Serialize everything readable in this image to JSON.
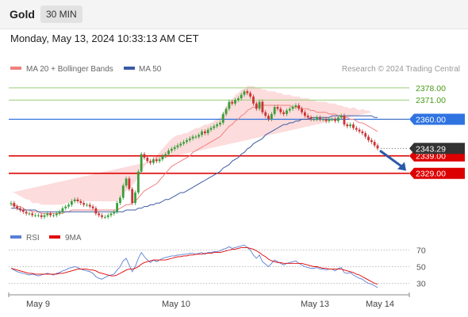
{
  "header": {
    "title": "Gold",
    "interval": "30 MIN",
    "datetime": "Monday, May 13, 2024 10:33:13 AM CET"
  },
  "colors": {
    "candle_up": "#3a9e3a",
    "candle_down": "#cc3333",
    "ma20": "#f08080",
    "bollinger": "#fbd3d3",
    "ma50": "#3b5ba5",
    "support": "#dd0000",
    "pivot": "#2f73e0",
    "resistance": "#9acd78",
    "rsi": "#5b7fd6",
    "rsi_ma": "#e00000",
    "arrow": "#2b59a8"
  },
  "chart_data": [
    {
      "type": "candlestick",
      "legend": [
        "MA 20 + Bollinger Bands",
        "MA 50"
      ],
      "watermark": "Research © 2024 Trading Central",
      "x_ticks": [
        "May 9",
        "May 10",
        "May 13",
        "May 14"
      ],
      "ylim": [
        2298,
        2392
      ],
      "current_price": "2343.29",
      "levels": [
        {
          "label": "2378.00",
          "value": 2378.0,
          "kind": "resistance"
        },
        {
          "label": "2371.00",
          "value": 2371.0,
          "kind": "resistance"
        },
        {
          "label": "2360.00",
          "value": 2360.0,
          "kind": "pivot"
        },
        {
          "label": "2339.00",
          "value": 2339.0,
          "kind": "support"
        },
        {
          "label": "2329.00",
          "value": 2329.0,
          "kind": "support"
        }
      ],
      "closes": [
        2312,
        2310,
        2309,
        2308,
        2307,
        2306,
        2306,
        2305,
        2305,
        2305,
        2304,
        2305,
        2306,
        2305,
        2305,
        2306,
        2307,
        2309,
        2310,
        2311,
        2313,
        2314,
        2313,
        2312,
        2311,
        2311,
        2310,
        2309,
        2306,
        2305,
        2304,
        2304,
        2305,
        2306,
        2307,
        2312,
        2315,
        2322,
        2326,
        2320,
        2312,
        2318,
        2330,
        2340,
        2338,
        2336,
        2335,
        2337,
        2336,
        2337,
        2339,
        2340,
        2342,
        2343,
        2344,
        2345,
        2346,
        2347,
        2348,
        2349,
        2350,
        2350,
        2351,
        2353,
        2352,
        2354,
        2355,
        2356,
        2357,
        2358,
        2363,
        2366,
        2370,
        2369,
        2371,
        2372,
        2374,
        2376,
        2375,
        2373,
        2369,
        2366,
        2370,
        2364,
        2362,
        2360,
        2363,
        2367,
        2366,
        2364,
        2363,
        2365,
        2366,
        2367,
        2368,
        2366,
        2364,
        2362,
        2361,
        2360,
        2360,
        2361,
        2360,
        2360,
        2359,
        2360,
        2360,
        2359,
        2361,
        2362,
        2357,
        2356,
        2357,
        2355,
        2354,
        2353,
        2352,
        2350,
        2348,
        2347,
        2345,
        2343.29
      ],
      "ma20": [
        2311,
        2311,
        2310,
        2310,
        2309,
        2308,
        2308,
        2307,
        2307,
        2307,
        2306,
        2306,
        2306,
        2306,
        2306,
        2306,
        2306,
        2306,
        2307,
        2307,
        2308,
        2308,
        2308,
        2308,
        2308,
        2308,
        2308,
        2308,
        2308,
        2308,
        2308,
        2308,
        2308,
        2308,
        2308,
        2308,
        2309,
        2310,
        2311,
        2311,
        2312,
        2313,
        2315,
        2317,
        2319,
        2320,
        2321,
        2322,
        2323,
        2325,
        2327,
        2329,
        2331,
        2333,
        2334,
        2335,
        2336,
        2337,
        2338,
        2339,
        2341,
        2342,
        2343,
        2344,
        2345,
        2346,
        2347,
        2348,
        2349,
        2350,
        2352,
        2354,
        2356,
        2357,
        2359,
        2360,
        2362,
        2363,
        2365,
        2366,
        2367,
        2367,
        2368,
        2368,
        2368,
        2368,
        2368,
        2368,
        2368,
        2368,
        2368,
        2368,
        2368,
        2367,
        2367,
        2367,
        2366,
        2366,
        2366,
        2365,
        2365,
        2364,
        2364,
        2364,
        2364,
        2363,
        2363,
        2363,
        2362,
        2362,
        2361,
        2361,
        2360,
        2360,
        2359,
        2358,
        2358,
        2357,
        2356,
        2355,
        2354,
        2353
      ],
      "ma50": [
        2309,
        2309,
        2309,
        2308,
        2308,
        2308,
        2308,
        2308,
        2308,
        2307,
        2307,
        2307,
        2307,
        2307,
        2307,
        2307,
        2307,
        2307,
        2307,
        2307,
        2307,
        2307,
        2307,
        2307,
        2307,
        2307,
        2307,
        2307,
        2307,
        2307,
        2307,
        2307,
        2307,
        2307,
        2307,
        2307,
        2307,
        2307,
        2308,
        2308,
        2308,
        2308,
        2309,
        2309,
        2310,
        2310,
        2311,
        2311,
        2312,
        2312,
        2313,
        2314,
        2314,
        2315,
        2316,
        2317,
        2318,
        2318,
        2319,
        2320,
        2321,
        2322,
        2323,
        2324,
        2325,
        2326,
        2327,
        2328,
        2329,
        2330,
        2332,
        2333,
        2334,
        2336,
        2337,
        2338,
        2340,
        2341,
        2343,
        2344,
        2346,
        2347,
        2348,
        2349,
        2351,
        2352,
        2353,
        2354,
        2355,
        2356,
        2357,
        2357,
        2358,
        2358,
        2359,
        2359,
        2360,
        2360,
        2360,
        2361,
        2361,
        2361,
        2361,
        2361,
        2361,
        2361,
        2362,
        2362,
        2362,
        2362,
        2362,
        2362,
        2362,
        2362,
        2362,
        2362,
        2362,
        2362,
        2362,
        2362,
        2361,
        2361
      ],
      "bb_width": [
        7,
        7,
        7,
        6,
        6,
        6,
        6,
        5,
        5,
        5,
        5,
        5,
        5,
        5,
        5,
        5,
        5,
        5,
        5,
        5,
        5,
        5,
        5,
        5,
        5,
        5,
        5,
        5,
        5,
        5,
        5,
        5,
        5,
        5,
        5,
        5,
        6,
        7,
        8,
        9,
        10,
        11,
        12,
        13,
        14,
        15,
        15,
        16,
        16,
        16,
        16,
        16,
        16,
        16,
        16,
        16,
        15,
        15,
        14,
        14,
        13,
        13,
        12,
        12,
        12,
        11,
        11,
        11,
        11,
        11,
        12,
        13,
        14,
        14,
        15,
        15,
        15,
        14,
        14,
        13,
        12,
        11,
        10,
        9,
        9,
        8,
        8,
        8,
        7,
        7,
        6,
        6,
        6,
        6,
        6,
        6,
        6,
        6,
        6,
        6,
        6,
        6,
        6,
        6,
        6,
        6,
        6,
        6,
        6,
        6,
        6,
        6,
        6,
        7,
        7,
        7,
        8,
        8,
        9,
        9
      ]
    },
    {
      "type": "line",
      "legend": [
        "RSI",
        "9MA"
      ],
      "ylim": [
        20,
        80
      ],
      "y_ticks": [
        70,
        50,
        30
      ],
      "series": [
        {
          "name": "RSI",
          "values": [
            48,
            46,
            44,
            43,
            42,
            41,
            40,
            41,
            40,
            39,
            40,
            41,
            42,
            41,
            40,
            42,
            43,
            45,
            46,
            48,
            49,
            50,
            49,
            47,
            46,
            45,
            44,
            42,
            38,
            36,
            35,
            37,
            39,
            40,
            41,
            46,
            50,
            57,
            60,
            52,
            44,
            50,
            60,
            67,
            62,
            58,
            55,
            58,
            56,
            58,
            60,
            61,
            62,
            63,
            63,
            64,
            64,
            65,
            65,
            66,
            66,
            65,
            66,
            67,
            65,
            67,
            67,
            68,
            68,
            69,
            71,
            72,
            74,
            72,
            73,
            74,
            75,
            76,
            73,
            70,
            64,
            60,
            64,
            56,
            53,
            50,
            54,
            58,
            56,
            54,
            52,
            54,
            55,
            56,
            57,
            54,
            52,
            50,
            49,
            48,
            48,
            49,
            47,
            47,
            46,
            47,
            47,
            45,
            48,
            49,
            43,
            42,
            43,
            40,
            38,
            36,
            35,
            32,
            30,
            29,
            27,
            25
          ]
        },
        {
          "name": "9MA",
          "values": [
            48,
            47,
            46,
            45,
            44,
            43,
            42,
            42,
            41,
            41,
            41,
            41,
            41,
            41,
            41,
            41,
            42,
            42,
            43,
            44,
            45,
            46,
            47,
            47,
            47,
            47,
            46,
            46,
            45,
            43,
            42,
            41,
            40,
            39,
            39,
            40,
            42,
            44,
            46,
            47,
            47,
            48,
            50,
            53,
            55,
            56,
            57,
            58,
            58,
            58,
            58,
            58,
            59,
            60,
            61,
            62,
            62,
            63,
            63,
            64,
            64,
            65,
            65,
            65,
            66,
            66,
            66,
            67,
            67,
            67,
            68,
            69,
            70,
            71,
            71,
            72,
            73,
            73,
            73,
            72,
            71,
            69,
            67,
            64,
            62,
            59,
            57,
            56,
            55,
            55,
            54,
            54,
            54,
            54,
            54,
            54,
            54,
            53,
            52,
            51,
            50,
            50,
            49,
            48,
            48,
            47,
            47,
            47,
            47,
            47,
            46,
            45,
            44,
            43,
            41,
            40,
            38,
            36,
            34,
            32,
            30,
            29
          ]
        }
      ]
    }
  ]
}
